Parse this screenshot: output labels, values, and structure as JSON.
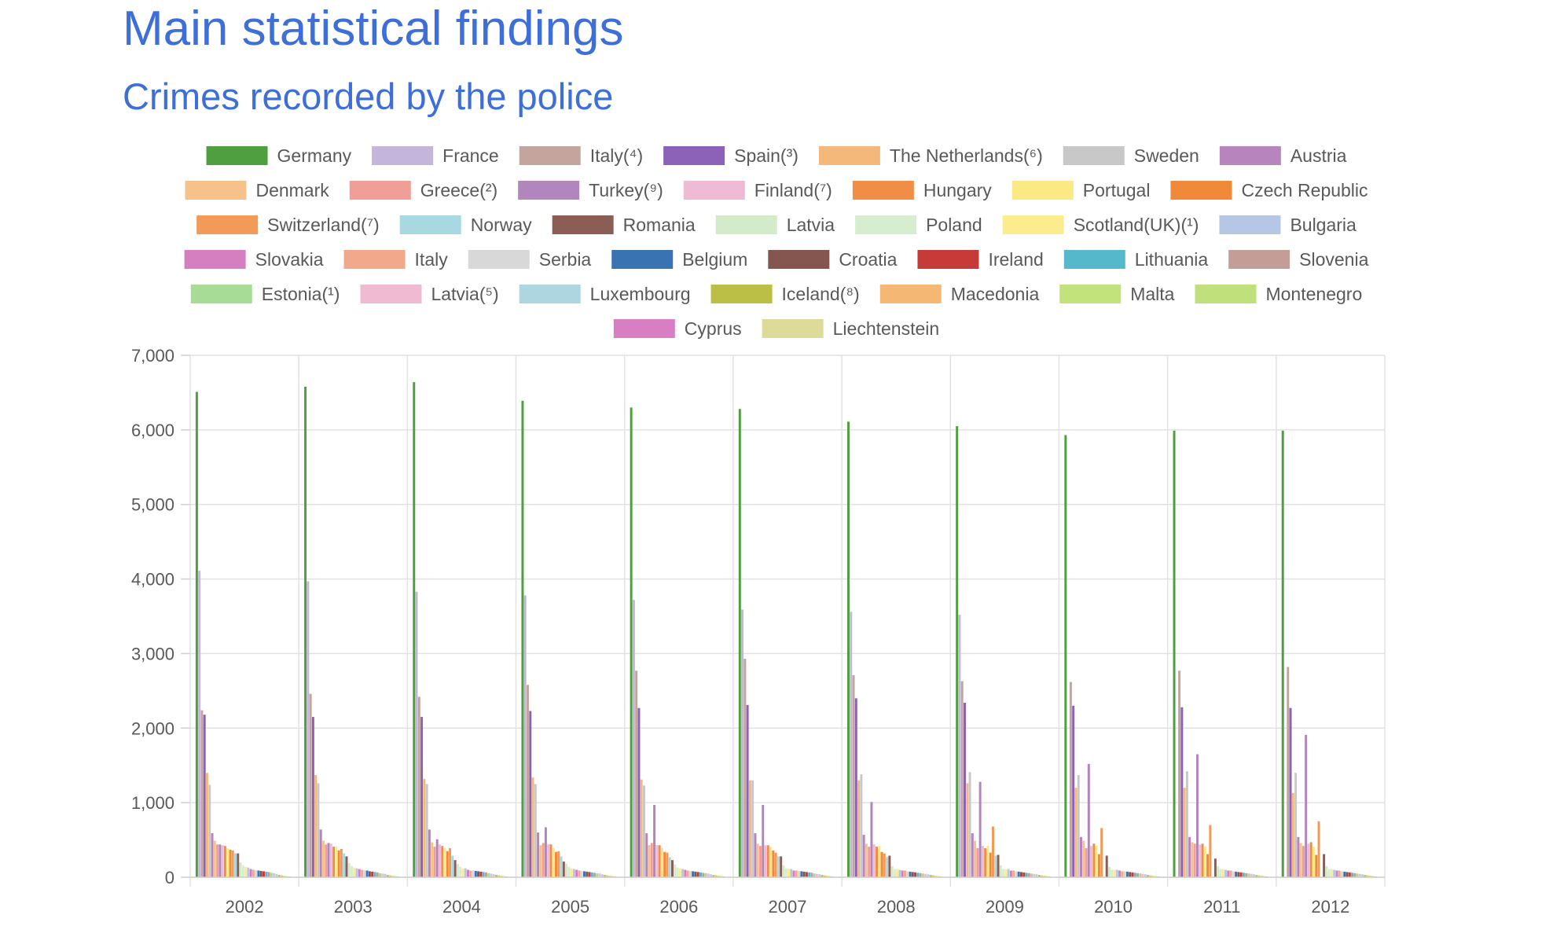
{
  "page": {
    "title": "Main statistical findings",
    "subtitle": "Crimes recorded by the police"
  },
  "chart_data": {
    "type": "bar",
    "title": "",
    "xlabel": "",
    "ylabel": "",
    "ylim": [
      0,
      7000
    ],
    "y_ticks": [
      0,
      1000,
      2000,
      3000,
      4000,
      5000,
      6000,
      7000
    ],
    "y_tick_labels": [
      "0",
      "1,000",
      "2,000",
      "3,000",
      "4,000",
      "5,000",
      "6,000",
      "7,000"
    ],
    "grid": true,
    "legend_position": "top",
    "categories": [
      "2002",
      "2003",
      "2004",
      "2005",
      "2006",
      "2007",
      "2008",
      "2009",
      "2010",
      "2011",
      "2012"
    ],
    "series": [
      {
        "name": "Germany",
        "color": "#4f9e3f",
        "values": [
          6510,
          6580,
          6640,
          6390,
          6300,
          6280,
          6110,
          6050,
          5930,
          5990,
          5990
        ]
      },
      {
        "name": "France",
        "color": "#c3b6da",
        "values": [
          4110,
          3970,
          3830,
          3780,
          3720,
          3590,
          3560,
          3520,
          0,
          0,
          0
        ]
      },
      {
        "name": "Italy(⁴)",
        "color": "#c4a59e",
        "values": [
          2240,
          2460,
          2420,
          2580,
          2770,
          2930,
          2710,
          2630,
          2620,
          2770,
          2820
        ]
      },
      {
        "name": "Spain(³)",
        "color": "#8c62b8",
        "values": [
          2180,
          2150,
          2150,
          2230,
          2270,
          2310,
          2400,
          2340,
          2300,
          2280,
          2270
        ]
      },
      {
        "name": "The Netherlands(⁶)",
        "color": "#f4b97a",
        "values": [
          1400,
          1370,
          1320,
          1340,
          1310,
          1300,
          1300,
          1260,
          1200,
          1200,
          1130
        ]
      },
      {
        "name": "Sweden",
        "color": "#c8c8c8",
        "values": [
          1240,
          1260,
          1250,
          1250,
          1230,
          1300,
          1380,
          1410,
          1370,
          1420,
          1400
        ]
      },
      {
        "name": "Austria",
        "color": "#b784bd",
        "values": [
          590,
          640,
          640,
          600,
          590,
          590,
          570,
          590,
          540,
          540,
          540
        ]
      },
      {
        "name": "Denmark",
        "color": "#f7c18c",
        "values": [
          490,
          490,
          470,
          430,
          430,
          450,
          450,
          490,
          490,
          470,
          460
        ]
      },
      {
        "name": "Greece(²)",
        "color": "#ef9f97",
        "values": [
          440,
          440,
          410,
          460,
          460,
          420,
          410,
          390,
          390,
          450,
          420
        ]
      },
      {
        "name": "Turkey(⁹)",
        "color": "#b086bd",
        "values": [
          440,
          460,
          510,
          670,
          970,
          970,
          1010,
          1280,
          1520,
          1650,
          1910
        ]
      },
      {
        "name": "Finland(⁷)",
        "color": "#efbad3",
        "values": [
          430,
          450,
          440,
          440,
          430,
          430,
          440,
          420,
          420,
          440,
          450
        ]
      },
      {
        "name": "Hungary",
        "color": "#f08e48",
        "values": [
          420,
          410,
          420,
          440,
          430,
          430,
          410,
          390,
          450,
          450,
          470
        ]
      },
      {
        "name": "Portugal",
        "color": "#fbe983",
        "values": [
          390,
          410,
          390,
          390,
          390,
          400,
          420,
          420,
          420,
          410,
          410
        ]
      },
      {
        "name": "Czech Republic",
        "color": "#f08a3a",
        "values": [
          370,
          360,
          350,
          340,
          340,
          360,
          340,
          330,
          310,
          310,
          300
        ]
      },
      {
        "name": "Switzerland(⁷)",
        "color": "#f29a57",
        "values": [
          360,
          380,
          390,
          350,
          330,
          330,
          320,
          680,
          660,
          700,
          750
        ]
      },
      {
        "name": "Norway",
        "color": "#a8d8e2",
        "values": [
          320,
          320,
          290,
          280,
          270,
          280,
          270,
          290,
          0,
          0,
          0
        ]
      },
      {
        "name": "Romania",
        "color": "#8b5d55",
        "values": [
          320,
          280,
          230,
          210,
          230,
          280,
          290,
          300,
          290,
          250,
          310
        ]
      },
      {
        "name": "Latvia",
        "color": "#d4ebc9",
        "values": [
          200,
          190,
          180,
          180,
          170,
          160,
          150,
          160,
          140,
          150,
          150
        ]
      },
      {
        "name": "Poland",
        "color": "#d6edd0",
        "values": [
          160,
          150,
          140,
          140,
          130,
          120,
          110,
          110,
          100,
          110,
          110
        ]
      },
      {
        "name": "Scotland(UK)(¹)",
        "color": "#fcec8d",
        "values": [
          140,
          130,
          120,
          120,
          120,
          110,
          110,
          110,
          100,
          110,
          110
        ]
      },
      {
        "name": "Bulgaria",
        "color": "#b6c7e6",
        "values": [
          130,
          120,
          120,
          110,
          110,
          110,
          100,
          110,
          100,
          100,
          100
        ]
      },
      {
        "name": "Slovakia",
        "color": "#d57fc1",
        "values": [
          110,
          110,
          100,
          100,
          100,
          90,
          90,
          90,
          90,
          90,
          90
        ]
      },
      {
        "name": "Italy",
        "color": "#f2a88a",
        "values": [
          100,
          100,
          90,
          90,
          90,
          90,
          90,
          90,
          80,
          90,
          90
        ]
      },
      {
        "name": "Serbia",
        "color": "#d8d8d8",
        "values": [
          95,
          95,
          90,
          85,
          85,
          85,
          80,
          80,
          80,
          80,
          80
        ]
      },
      {
        "name": "Belgium",
        "color": "#3a73b1",
        "values": [
          90,
          90,
          85,
          80,
          80,
          80,
          75,
          75,
          75,
          75,
          75
        ]
      },
      {
        "name": "Croatia",
        "color": "#84564f",
        "values": [
          85,
          80,
          80,
          75,
          75,
          75,
          70,
          70,
          70,
          70,
          70
        ]
      },
      {
        "name": "Ireland",
        "color": "#c63b38",
        "values": [
          80,
          75,
          75,
          70,
          70,
          70,
          65,
          65,
          65,
          65,
          65
        ]
      },
      {
        "name": "Lithuania",
        "color": "#56b9cb",
        "values": [
          75,
          70,
          70,
          65,
          65,
          65,
          60,
          60,
          60,
          60,
          60
        ]
      },
      {
        "name": "Slovenia",
        "color": "#c39e97",
        "values": [
          70,
          65,
          65,
          60,
          60,
          60,
          55,
          55,
          55,
          55,
          55
        ]
      },
      {
        "name": "Estonia(¹)",
        "color": "#a6dc95",
        "values": [
          60,
          55,
          55,
          55,
          55,
          50,
          50,
          50,
          50,
          50,
          50
        ]
      },
      {
        "name": "Latvia(⁵)",
        "color": "#f0bad3",
        "values": [
          55,
          50,
          50,
          50,
          50,
          45,
          45,
          45,
          45,
          45,
          45
        ]
      },
      {
        "name": "Luxembourg",
        "color": "#aed6e1",
        "values": [
          45,
          45,
          40,
          40,
          40,
          40,
          40,
          40,
          40,
          40,
          40
        ]
      },
      {
        "name": "Iceland(⁸)",
        "color": "#bcbf45",
        "values": [
          30,
          30,
          30,
          30,
          30,
          30,
          30,
          30,
          30,
          30,
          30
        ]
      },
      {
        "name": "Macedonia",
        "color": "#f4b774",
        "values": [
          25,
          25,
          25,
          25,
          25,
          25,
          25,
          25,
          25,
          25,
          25
        ]
      },
      {
        "name": "Malta",
        "color": "#c2e27c",
        "values": [
          20,
          20,
          20,
          20,
          20,
          20,
          20,
          20,
          20,
          20,
          20
        ]
      },
      {
        "name": "Montenegro",
        "color": "#bfe07a",
        "values": [
          15,
          15,
          15,
          15,
          15,
          15,
          15,
          15,
          15,
          15,
          15
        ]
      },
      {
        "name": "Cyprus",
        "color": "#d77fc2",
        "values": [
          10,
          10,
          10,
          10,
          10,
          10,
          10,
          10,
          10,
          10,
          10
        ]
      },
      {
        "name": "Liechtenstein",
        "color": "#dddb99",
        "values": [
          5,
          5,
          5,
          5,
          5,
          5,
          5,
          5,
          5,
          5,
          5
        ]
      }
    ]
  }
}
